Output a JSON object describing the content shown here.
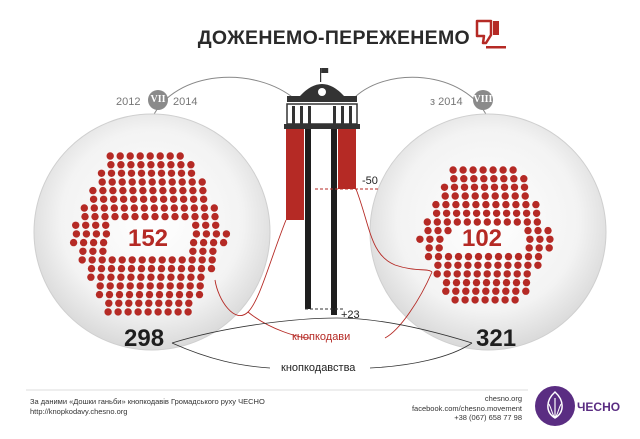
{
  "title": "ДОЖЕНЕМО-ПЕРЕЖЕНЕМО",
  "left": {
    "year_from": "2012",
    "convocation": "VII",
    "year_to": "2014",
    "button_pushers": "152",
    "total_violations": "298"
  },
  "right": {
    "year_prefix": "з 2014",
    "convocation": "VIII",
    "button_pushers": "102",
    "total_violations": "321"
  },
  "center": {
    "delta_pushers": "-50",
    "delta_violations": "+23"
  },
  "labels": {
    "pushers": "кнопкодави",
    "violations": "кнопкодавства"
  },
  "footer": {
    "source_line1": "За даними «Дошки ганьби» кнопкодавів Громадського руху ЧЕСНО",
    "source_line2": "http://knopkodavy.chesno.org",
    "contact_site": "chesno.org",
    "contact_facebook": "facebook.com/chesno.movement",
    "contact_phone": "+38 (067) 658 77 98",
    "logo_text": "ЧЕСНО"
  },
  "colors": {
    "accent_red": "#b52a25",
    "brand_purple": "#5a2d82"
  },
  "icons": [
    "thumbs-down-icon",
    "parliament-building-icon",
    "garlic-logo-icon"
  ]
}
